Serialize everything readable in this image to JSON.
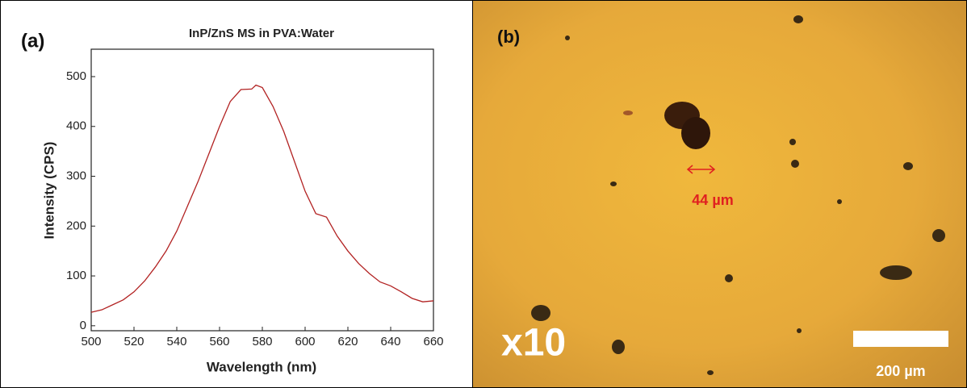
{
  "panel_a": {
    "label": "(a)"
  },
  "chart_data": {
    "type": "line",
    "title": "InP/ZnS MS in PVA:Water",
    "x_label": "Wavelength (nm)",
    "y_label": "Intensity (CPS)",
    "x": [
      500,
      505,
      510,
      515,
      520,
      525,
      530,
      535,
      540,
      545,
      550,
      555,
      560,
      565,
      570,
      575,
      577,
      580,
      585,
      590,
      595,
      600,
      605,
      610,
      615,
      620,
      625,
      630,
      635,
      640,
      645,
      650,
      655,
      660
    ],
    "values": [
      27,
      32,
      42,
      52,
      68,
      90,
      118,
      150,
      190,
      240,
      290,
      345,
      400,
      450,
      474,
      475,
      483,
      478,
      440,
      390,
      330,
      270,
      225,
      218,
      180,
      150,
      125,
      105,
      88,
      80,
      68,
      55,
      48,
      50
    ],
    "color": "#b22222",
    "xlim": [
      500,
      660
    ],
    "ylim": [
      -10,
      555
    ],
    "xticks": [
      500,
      520,
      540,
      560,
      580,
      600,
      620,
      640,
      660
    ],
    "yticks": [
      0,
      100,
      200,
      300,
      400,
      500
    ]
  },
  "micrograph": {
    "label": "(b)",
    "magnification": "x10",
    "feature_size": "44 µm",
    "scale_bar": "200 µm"
  }
}
